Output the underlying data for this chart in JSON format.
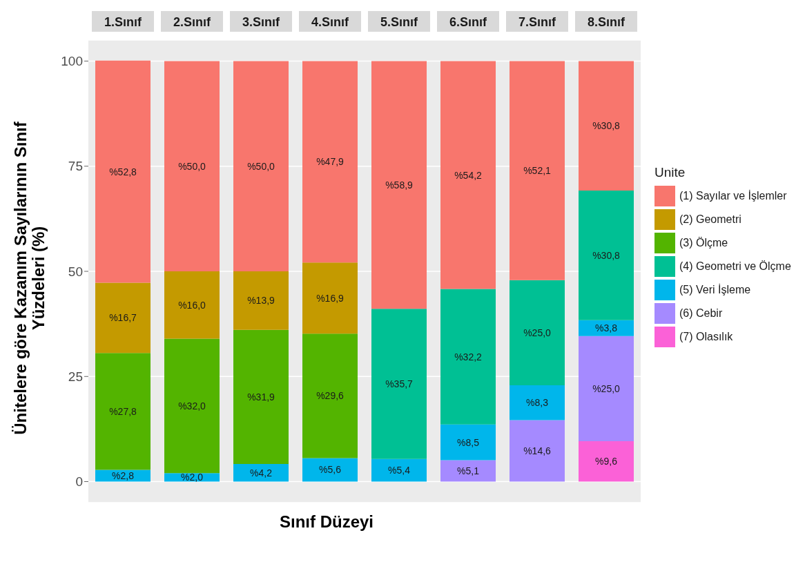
{
  "chart_data": {
    "type": "bar",
    "stacked": true,
    "ylabel": "Ünitelere göre Kazanım Sayılarının Sınıf Yüzdeleri (%)",
    "xlabel": "Sınıf Düzeyi",
    "legend_title": "Unite",
    "legend": "right",
    "grid": true,
    "categories": [
      "1.Sınıf",
      "2.Sınıf",
      "3.Sınıf",
      "4.Sınıf",
      "5.Sınıf",
      "6.Sınıf",
      "7.Sınıf",
      "8.Sınıf"
    ],
    "ylim": [
      -5,
      105
    ],
    "yticks": [
      0,
      25,
      50,
      75,
      100
    ],
    "series": [
      {
        "name": "(7) Olasılık",
        "color": "#fb61d7",
        "values": [
          null,
          null,
          null,
          null,
          null,
          null,
          null,
          9.6
        ],
        "value_labels": [
          null,
          null,
          null,
          null,
          null,
          null,
          null,
          "%9,6"
        ]
      },
      {
        "name": "(6) Cebir",
        "color": "#a58aff",
        "values": [
          null,
          null,
          null,
          null,
          null,
          5.1,
          14.6,
          25.0
        ],
        "value_labels": [
          null,
          null,
          null,
          null,
          null,
          "%5,1",
          "%14,6",
          "%25,0"
        ]
      },
      {
        "name": "(5) Veri İşleme",
        "color": "#00b6eb",
        "values": [
          2.8,
          2.0,
          4.2,
          5.6,
          5.4,
          8.5,
          8.3,
          3.8
        ],
        "value_labels": [
          "%2,8",
          "%2,0",
          "%4,2",
          "%5,6",
          "%5,4",
          "%8,5",
          "%8,3",
          "%3,8"
        ]
      },
      {
        "name": "(4) Geometri ve Ölçme",
        "color": "#00c094",
        "values": [
          null,
          null,
          null,
          null,
          35.7,
          32.2,
          25.0,
          30.8
        ],
        "value_labels": [
          null,
          null,
          null,
          null,
          "%35,7",
          "%32,2",
          "%25,0",
          "%30,8"
        ]
      },
      {
        "name": "(3) Ölçme",
        "color": "#53b400",
        "values": [
          27.8,
          32.0,
          31.9,
          29.6,
          null,
          null,
          null,
          null
        ],
        "value_labels": [
          "%27,8",
          "%32,0",
          "%31,9",
          "%29,6",
          null,
          null,
          null,
          null
        ]
      },
      {
        "name": "(2) Geometri",
        "color": "#c49a00",
        "values": [
          16.7,
          16.0,
          13.9,
          16.9,
          null,
          null,
          null,
          null
        ],
        "value_labels": [
          "%16,7",
          "%16,0",
          "%13,9",
          "%16,9",
          null,
          null,
          null,
          null
        ]
      },
      {
        "name": "(1) Sayılar ve İşlemler",
        "color": "#f8766d",
        "values": [
          52.8,
          50.0,
          50.0,
          47.9,
          58.9,
          54.2,
          52.1,
          30.8
        ],
        "value_labels": [
          "%52,8",
          "%50,0",
          "%50,0",
          "%47,9",
          "%58,9",
          "%54,2",
          "%52,1",
          "%30,8"
        ]
      }
    ]
  }
}
